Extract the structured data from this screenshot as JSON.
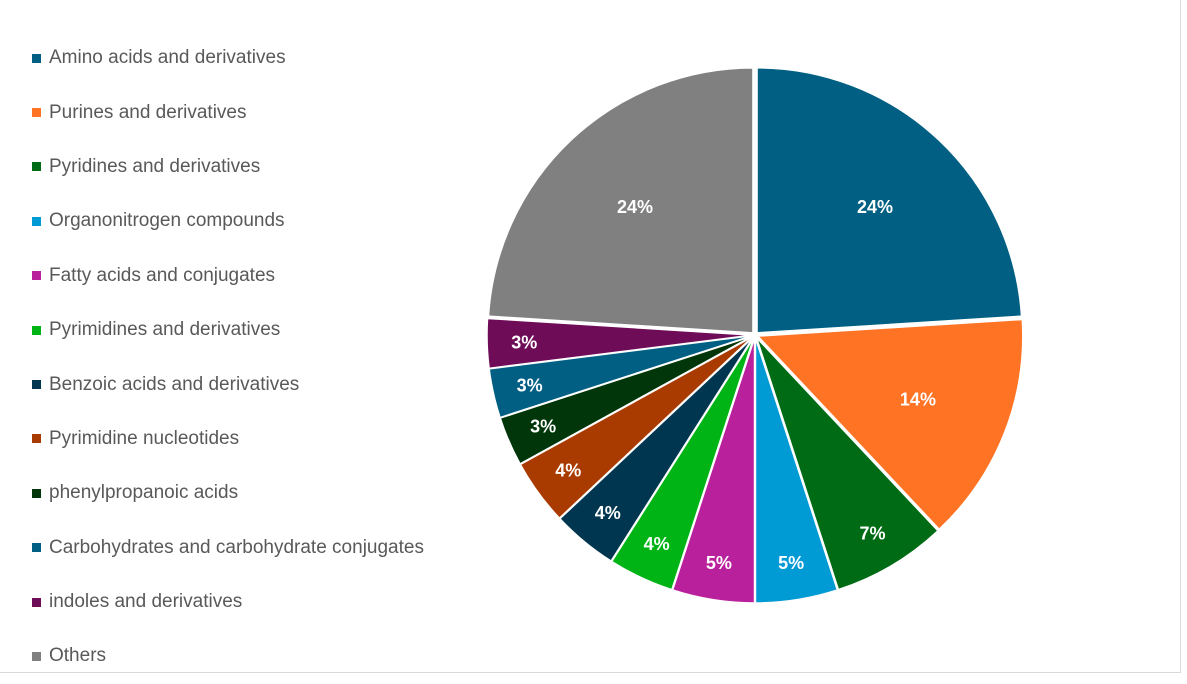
{
  "chart_data": {
    "type": "pie",
    "legend_position": "left",
    "categories": [
      "Amino acids and derivatives",
      "Purines and derivatives",
      "Pyridines and derivatives",
      "Organonitrogen compounds",
      "Fatty acids and conjugates",
      "Pyrimidines and derivatives",
      "Benzoic acids and derivatives",
      "Pyrimidine nucleotides",
      "phenylpropanoic acids",
      "Carbohydrates and carbohydrate conjugates",
      "indoles and derivatives",
      "Others"
    ],
    "values": [
      24,
      14,
      7,
      5,
      5,
      4,
      4,
      4,
      3,
      3,
      3,
      24
    ],
    "data_labels": [
      "24%",
      "14%",
      "7%",
      "5%",
      "5%",
      "4%",
      "4%",
      "4%",
      "3%",
      "3%",
      "3%",
      "24%"
    ],
    "colors": [
      "#005F83",
      "#FF7325",
      "#006B15",
      "#009AD5",
      "#B9209B",
      "#00B416",
      "#00364F",
      "#AA3B00",
      "#00360A",
      "#005F83",
      "#6E0C57",
      "#808080"
    ],
    "unit": "%",
    "start_angle_deg": 0,
    "direction": "clockwise"
  }
}
